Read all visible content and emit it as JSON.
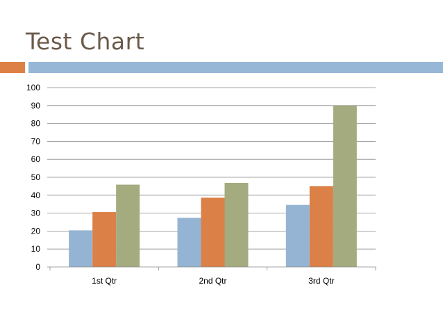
{
  "slide": {
    "title": "Test Chart"
  },
  "colors": {
    "title": "#6b5a4a",
    "accent_orange": "#dd8046",
    "accent_blue": "#96b7d6",
    "series": [
      "#95b4d3",
      "#db8047",
      "#a4ab7e"
    ],
    "grid": "#888888"
  },
  "chart_data": {
    "type": "bar",
    "categories": [
      "1st Qtr",
      "2nd Qtr",
      "3rd Qtr"
    ],
    "series": [
      {
        "values": [
          20.4,
          27.4,
          34.6
        ]
      },
      {
        "values": [
          30.6,
          38.6,
          45
        ]
      },
      {
        "values": [
          45.9,
          46.9,
          90
        ]
      }
    ],
    "ylim": [
      0,
      100
    ],
    "yticks": [
      0,
      10,
      20,
      30,
      40,
      50,
      60,
      70,
      80,
      90,
      100
    ],
    "grid": true,
    "legend": "none"
  }
}
